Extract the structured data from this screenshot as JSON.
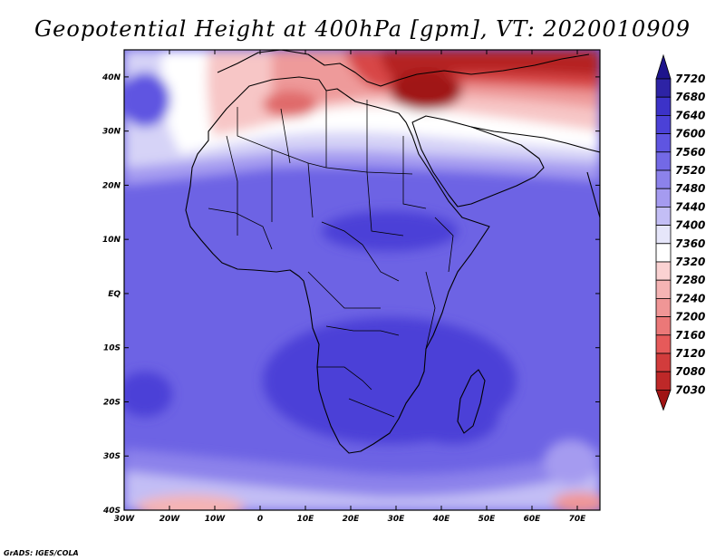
{
  "title": "Geopotential Height at 400hPa [gpm], VT: 2020010909",
  "credit": "GrADS: IGES/COLA",
  "map": {
    "lon_range": [
      -30,
      75
    ],
    "lat_range": [
      -40,
      45
    ],
    "x_ticks": [
      "30W",
      "20W",
      "10W",
      "0",
      "10E",
      "20E",
      "30E",
      "40E",
      "50E",
      "60E",
      "70E"
    ],
    "y_ticks": [
      "40S",
      "30S",
      "20S",
      "10S",
      "EQ",
      "10N",
      "20N",
      "30N",
      "40N"
    ]
  },
  "colorbar": {
    "labels": [
      "7720",
      "7680",
      "7640",
      "7600",
      "7560",
      "7520",
      "7480",
      "7440",
      "7400",
      "7360",
      "7320",
      "7280",
      "7240",
      "7200",
      "7160",
      "7120",
      "7080",
      "7030"
    ],
    "colors": [
      "#1e148c",
      "#2d23a5",
      "#3c32c8",
      "#4b41d7",
      "#5f55e1",
      "#7369e6",
      "#8c82eb",
      "#a59bf0",
      "#c3bef5",
      "#e6e6fa",
      "#ffffff",
      "#fad2d2",
      "#f5b4b4",
      "#f09696",
      "#eb7878",
      "#e65a5a",
      "#d23c3c",
      "#be2828",
      "#a01414"
    ]
  }
}
